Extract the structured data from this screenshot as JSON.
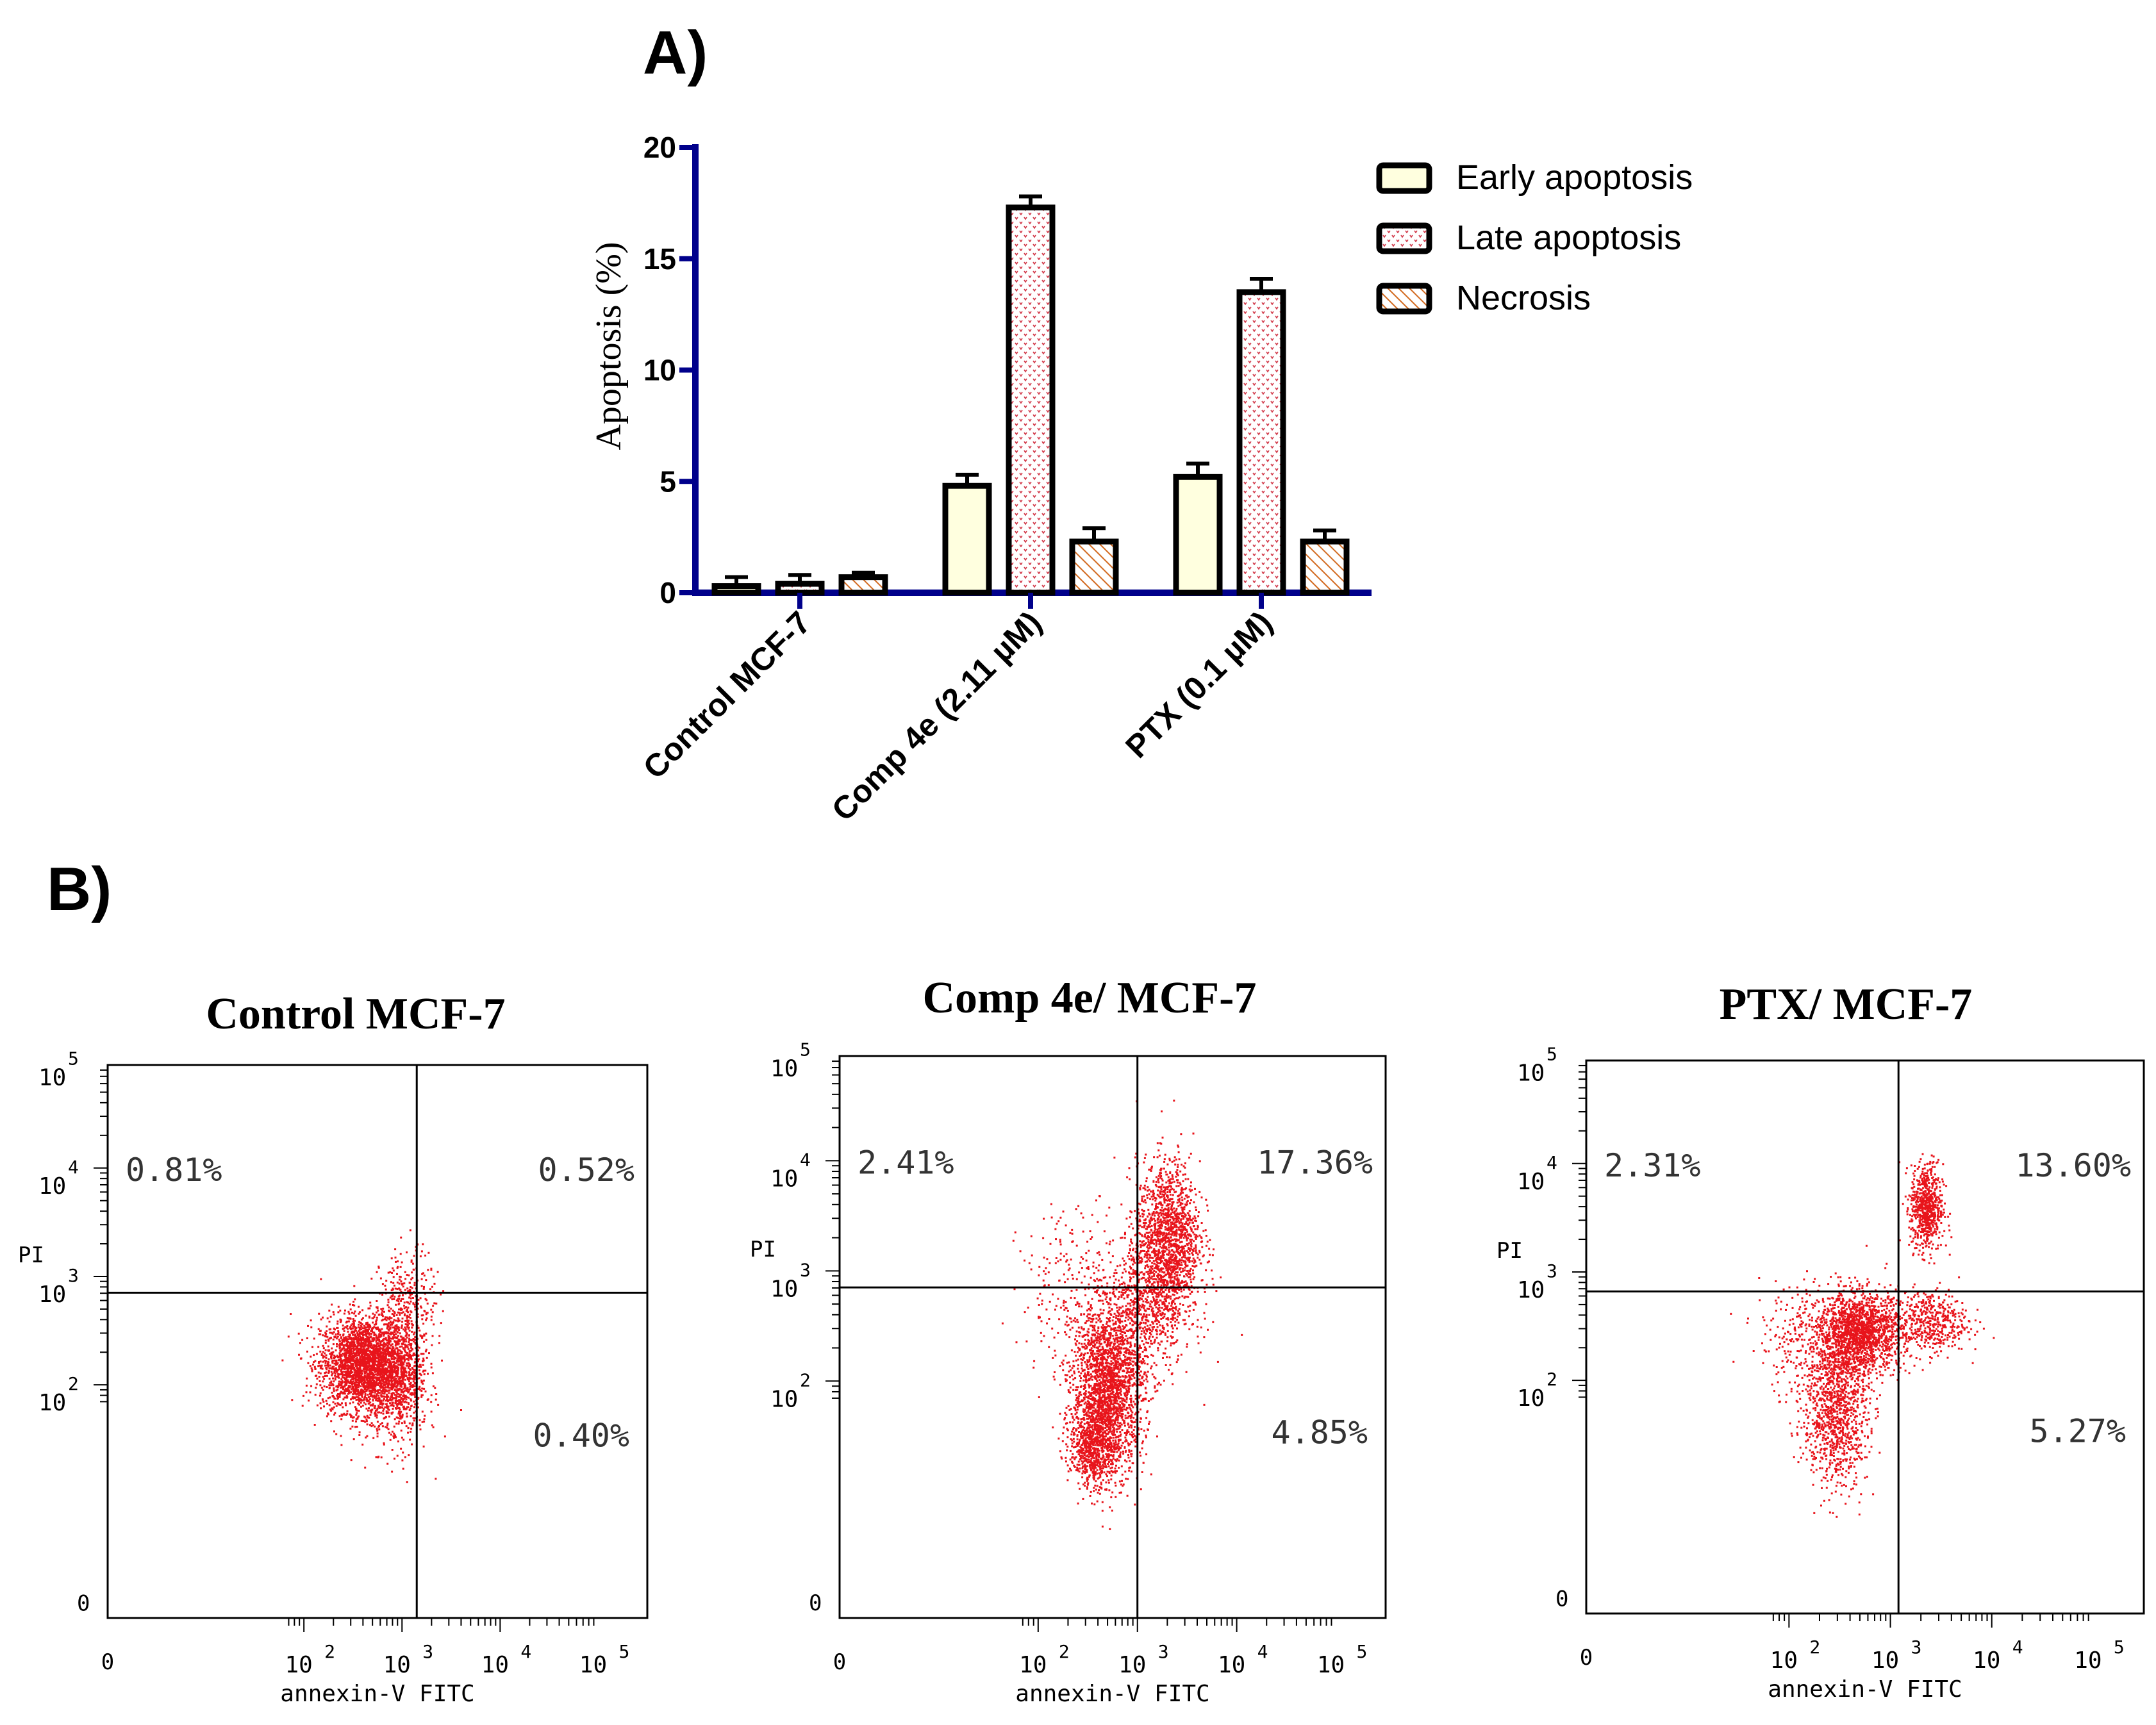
{
  "colors": {
    "axis": "#00008b",
    "early": "#ffffdf",
    "late_dot": "#d23a4a",
    "necrosis_stripe": "#d2691e",
    "dot": "#e8141b",
    "text": "#000000"
  },
  "panel_a": {
    "label": "A)",
    "chart_data": {
      "type": "bar",
      "title": "",
      "ylabel": "Apoptosis (%)",
      "xlabel": "",
      "ylim": [
        0,
        20
      ],
      "yticks": [
        "0",
        "5",
        "10",
        "15",
        "20"
      ],
      "categories": [
        "Control MCF-7",
        "Comp 4e (2.11 µM)",
        "PTX (0.1 µM)"
      ],
      "series": [
        {
          "name": "Early apoptosis",
          "values": [
            0.3,
            4.8,
            5.2
          ],
          "errors": [
            0.4,
            0.5,
            0.6
          ],
          "pattern": "early"
        },
        {
          "name": "Late apoptosis",
          "values": [
            0.4,
            17.3,
            13.5
          ],
          "errors": [
            0.4,
            0.5,
            0.6
          ],
          "pattern": "late"
        },
        {
          "name": "Necrosis",
          "values": [
            0.7,
            2.3,
            2.3
          ],
          "errors": [
            0.2,
            0.6,
            0.5
          ],
          "pattern": "necrosis"
        }
      ]
    }
  },
  "panel_b": {
    "label": "B)",
    "chart_data": [
      {
        "type": "scatter",
        "title": "Control MCF-7",
        "xlabel": "annexin-V FITC",
        "ylabel": "PI",
        "quadrants": {
          "upper_left": "0.81%",
          "upper_right": "0.52%",
          "lower_right": "0.40%"
        },
        "gate": {
          "x": 3.15,
          "y": 2.85
        },
        "clusters": [
          {
            "cx": 2.6,
            "cy": 2.2,
            "sx": 0.22,
            "sy": 0.22,
            "n": 2600
          },
          {
            "cx": 2.95,
            "cy": 2.05,
            "sx": 0.15,
            "sy": 0.3,
            "n": 800
          },
          {
            "cx": 3.05,
            "cy": 2.75,
            "sx": 0.14,
            "sy": 0.25,
            "n": 300
          }
        ]
      },
      {
        "type": "scatter",
        "title": "Comp 4e/ MCF-7",
        "xlabel": "annexin-V FITC",
        "ylabel": "PI",
        "quadrants": {
          "upper_left": "2.41%",
          "upper_right": "17.36%",
          "lower_right": "4.85%"
        },
        "gate": {
          "x": 3.0,
          "y": 2.85
        },
        "clusters": [
          {
            "cx": 2.7,
            "cy": 1.95,
            "sx": 0.18,
            "sy": 0.38,
            "n": 2200
          },
          {
            "cx": 2.55,
            "cy": 1.45,
            "sx": 0.12,
            "sy": 0.2,
            "n": 700
          },
          {
            "cx": 3.3,
            "cy": 3.3,
            "sx": 0.16,
            "sy": 0.35,
            "n": 1500
          },
          {
            "cx": 3.1,
            "cy": 2.7,
            "sx": 0.22,
            "sy": 0.3,
            "n": 700
          },
          {
            "cx": 2.4,
            "cy": 2.8,
            "sx": 0.3,
            "sy": 0.4,
            "n": 250
          }
        ]
      },
      {
        "type": "scatter",
        "title": "PTX/ MCF-7",
        "xlabel": "annexin-V FITC",
        "ylabel": "PI",
        "quadrants": {
          "upper_left": "2.31%",
          "upper_right": "13.60%",
          "lower_right": "5.27%"
        },
        "gate": {
          "x": 3.08,
          "y": 2.82
        },
        "clusters": [
          {
            "cx": 2.7,
            "cy": 2.45,
            "sx": 0.2,
            "sy": 0.18,
            "n": 1500
          },
          {
            "cx": 2.45,
            "cy": 1.75,
            "sx": 0.16,
            "sy": 0.35,
            "n": 1100
          },
          {
            "cx": 3.35,
            "cy": 3.6,
            "sx": 0.08,
            "sy": 0.2,
            "n": 700
          },
          {
            "cx": 3.35,
            "cy": 2.55,
            "sx": 0.2,
            "sy": 0.15,
            "n": 500
          },
          {
            "cx": 2.3,
            "cy": 2.4,
            "sx": 0.3,
            "sy": 0.25,
            "n": 400
          }
        ]
      }
    ]
  },
  "flow_axes": {
    "x_ticks": [
      "0",
      "10",
      "10",
      "10",
      "10"
    ],
    "x_exps": [
      "2",
      "3",
      "4",
      "5"
    ],
    "y_ticks": [
      "0",
      "10",
      "10",
      "10",
      "10"
    ],
    "y_exps": [
      "2",
      "3",
      "4",
      "5"
    ]
  }
}
